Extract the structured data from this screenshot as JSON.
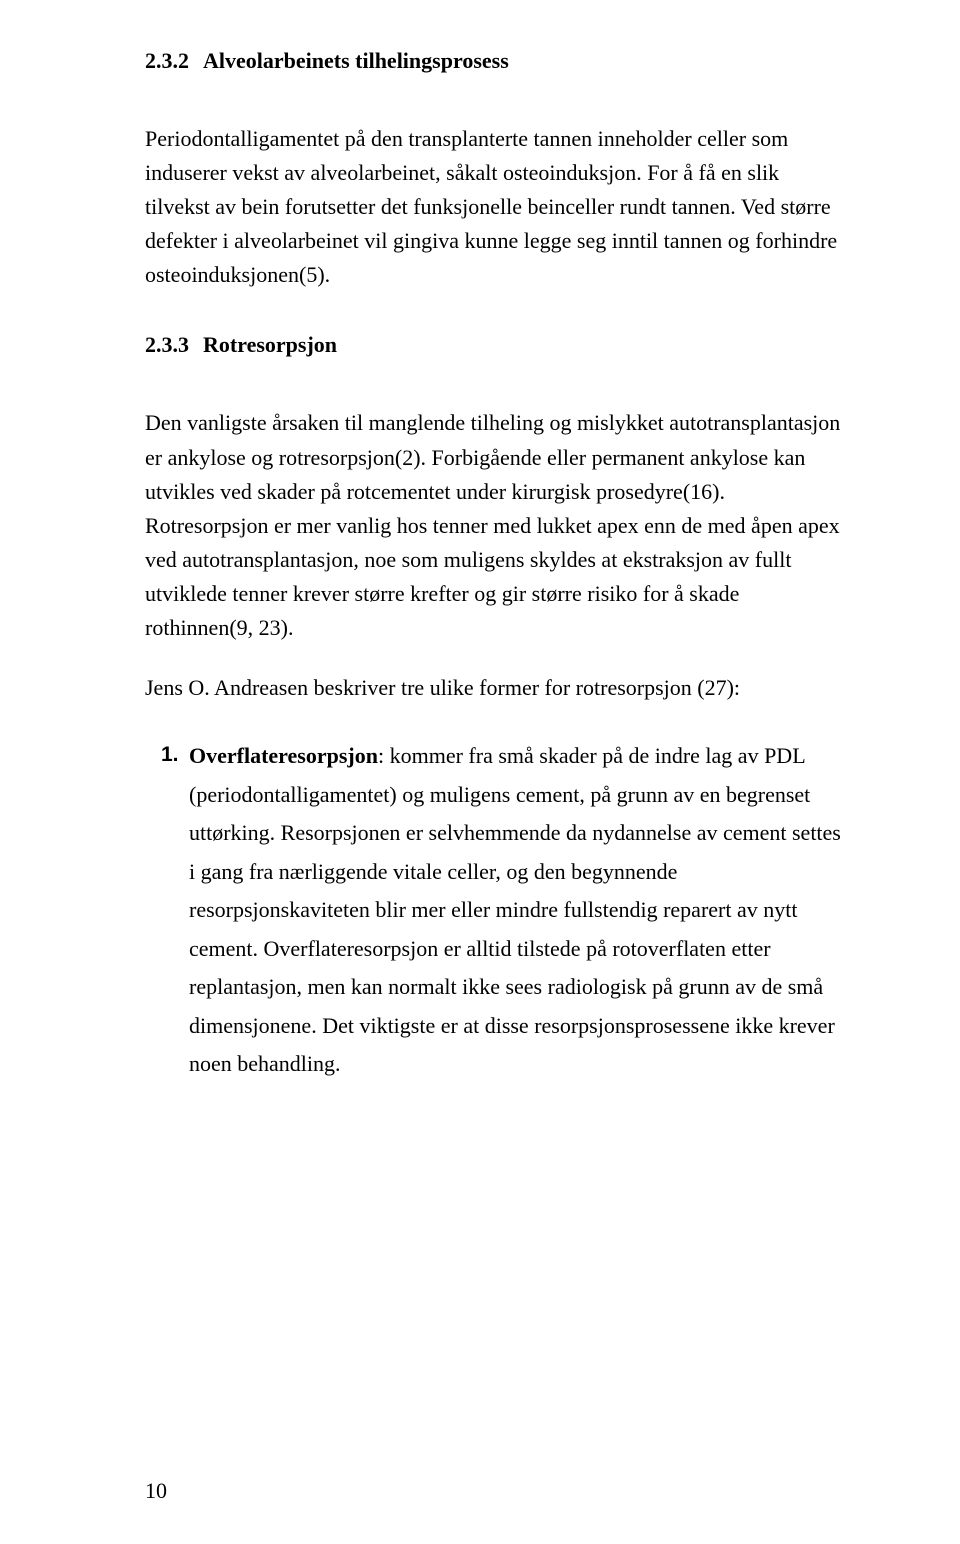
{
  "colors": {
    "background": "#ffffff",
    "text": "#000000"
  },
  "typography": {
    "body_font": "Times New Roman",
    "body_size_pt": 12,
    "marker_font": "Arial",
    "heading_weight": "bold"
  },
  "page_number": "10",
  "section_232": {
    "number": "2.3.2",
    "title": "Alveolarbeinets tilhelingsprosess",
    "paragraph": "Periodontalligamentet på den transplanterte tannen inneholder celler som induserer vekst av alveolarbeinet, såkalt osteoinduksjon. For å få en slik tilvekst av bein forutsetter det funksjonelle beinceller rundt tannen. Ved større defekter i alveolarbeinet vil gingiva kunne legge seg inntil tannen og forhindre osteoinduksjonen(5)."
  },
  "section_233": {
    "number": "2.3.3",
    "title": "Rotresorpsjon",
    "paragraph1": "Den vanligste årsaken til manglende tilheling og mislykket autotransplantasjon er ankylose og rotresorpsjon(2). Forbigående eller permanent ankylose kan utvikles ved skader på rotcementet under kirurgisk prosedyre(16). Rotresorpsjon er mer vanlig hos tenner med lukket apex enn de med åpen apex ved autotransplantasjon, noe som muligens skyldes at ekstraksjon av fullt utviklede tenner krever større krefter og gir større risiko for å skade rothinnen(9, 23).",
    "paragraph2": "Jens O. Andreasen beskriver tre ulike former for rotresorpsjon (27):",
    "list_item_1": {
      "marker": "1.",
      "lead": "Overflateresorpsjon",
      "text": ": kommer fra små skader på de indre lag av PDL (periodontalligamentet) og muligens cement, på grunn av en begrenset uttørking. Resorpsjonen er selvhemmende da nydannelse av cement settes i gang fra nærliggende vitale celler, og den begynnende resorpsjonskaviteten blir mer eller mindre fullstendig reparert av nytt cement. Overflateresorpsjon er alltid tilstede på rotoverflaten etter replantasjon, men kan normalt ikke sees radiologisk på grunn av de små dimensjonene. Det viktigste er at disse resorpsjonsprosessene ikke krever noen behandling."
    }
  }
}
